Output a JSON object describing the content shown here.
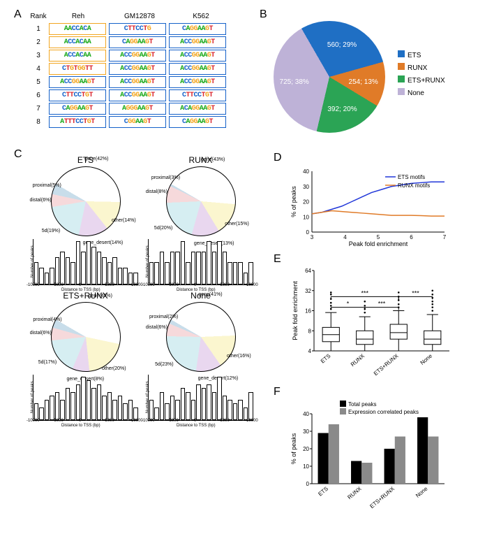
{
  "panelA": {
    "headers": [
      "Rank",
      "Reh",
      "GM12878",
      "K562"
    ],
    "ranks": [
      1,
      2,
      3,
      4,
      5,
      6,
      7,
      8
    ],
    "border_colors": {
      "runx": "#f2a51f",
      "ets": "#1461c9"
    },
    "motifs": [
      [
        {
          "seq": "AACCACA",
          "b": "runx"
        },
        {
          "seq": "CTTCCTG",
          "b": "ets"
        },
        {
          "seq": "CAGGAAGT",
          "b": "ets"
        }
      ],
      [
        {
          "seq": "ACCACAA",
          "b": "runx"
        },
        {
          "seq": "CAGGAAGT",
          "b": "ets"
        },
        {
          "seq": "ACCGGAAGT",
          "b": "ets"
        }
      ],
      [
        {
          "seq": "ACCACAA",
          "b": "runx"
        },
        {
          "seq": "ACCGGAAGT",
          "b": "ets"
        },
        {
          "seq": "ACCGGAAGT",
          "b": "ets"
        }
      ],
      [
        {
          "seq": "CTGTGGTT",
          "b": "runx"
        },
        {
          "seq": "ACCGGAAGT",
          "b": "ets"
        },
        {
          "seq": "ACCGGAAGT",
          "b": "ets"
        }
      ],
      [
        {
          "seq": "ACCGGAAGT",
          "b": "ets"
        },
        {
          "seq": "ACCGGAAGT",
          "b": "ets"
        },
        {
          "seq": "ACCGGAAGT",
          "b": "ets"
        }
      ],
      [
        {
          "seq": "CTTCCTGT",
          "b": "ets"
        },
        {
          "seq": "ACCGGAAGT",
          "b": "ets"
        },
        {
          "seq": "CTTCCTGT",
          "b": "ets"
        }
      ],
      [
        {
          "seq": "CAGGAAGT",
          "b": "ets"
        },
        {
          "seq": "AGGGAAGT",
          "b": "ets"
        },
        {
          "seq": "ACAGGAAGT",
          "b": "ets"
        }
      ],
      [
        {
          "seq": "ATTTCCTGT",
          "b": "ets"
        },
        {
          "seq": "CGGAAGT",
          "b": "ets"
        },
        {
          "seq": "CAGGAAGT",
          "b": "ets"
        }
      ]
    ]
  },
  "panelB": {
    "slices": [
      {
        "label": "ETS",
        "value": 560,
        "pct": 29,
        "color": "#1f6fc4"
      },
      {
        "label": "RUNX",
        "value": 254,
        "pct": 13,
        "color": "#e07b28"
      },
      {
        "label": "ETS+RUNX",
        "value": 392,
        "pct": 20,
        "color": "#2ba455"
      },
      {
        "label": "None",
        "value": 725,
        "pct": 38,
        "color": "#beb2d7"
      }
    ]
  },
  "panelC": {
    "region_colors": {
      "gene": "#ffffff",
      "other": "#fbf6cf",
      "gene_desert": "#e9d7ef",
      "5d": "#d6eef2",
      "distal": "#f6d9db",
      "proximal": "#c8ddea"
    },
    "groups": [
      {
        "title": "ETS",
        "regions": [
          {
            "k": "gene",
            "p": 42
          },
          {
            "k": "other",
            "p": 14
          },
          {
            "k": "gene_desert",
            "p": 14
          },
          {
            "k": "5d",
            "p": 19
          },
          {
            "k": "distal",
            "p": 6
          },
          {
            "k": "proximal",
            "p": 5
          }
        ],
        "hist": [
          4,
          3,
          2,
          3,
          5,
          6,
          5,
          4,
          8,
          6,
          8,
          7,
          6,
          5,
          4,
          5,
          3,
          3,
          2,
          2
        ]
      },
      {
        "title": "RUNX",
        "regions": [
          {
            "k": "gene",
            "p": 43
          },
          {
            "k": "other",
            "p": 15
          },
          {
            "k": "gene_desert",
            "p": 13
          },
          {
            "k": "5d",
            "p": 20
          },
          {
            "k": "distal",
            "p": 8
          },
          {
            "k": "proximal",
            "p": 3
          }
        ],
        "hist": [
          2,
          2,
          3,
          2,
          3,
          3,
          4,
          2,
          3,
          3,
          3,
          4,
          3,
          4,
          3,
          2,
          2,
          2,
          1,
          2
        ]
      },
      {
        "title": "ETS+RUNX",
        "regions": [
          {
            "k": "gene",
            "p": 45
          },
          {
            "k": "other",
            "p": 20
          },
          {
            "k": "gene_desert",
            "p": 8
          },
          {
            "k": "5d",
            "p": 17
          },
          {
            "k": "distal",
            "p": 6
          },
          {
            "k": "proximal",
            "p": 4
          }
        ],
        "hist": [
          4,
          3,
          5,
          6,
          7,
          5,
          8,
          7,
          9,
          11,
          10,
          8,
          9,
          6,
          7,
          5,
          6,
          4,
          5,
          3
        ]
      },
      {
        "title": "None",
        "regions": [
          {
            "k": "gene",
            "p": 41
          },
          {
            "k": "other",
            "p": 16
          },
          {
            "k": "gene_desert",
            "p": 12
          },
          {
            "k": "5d",
            "p": 23
          },
          {
            "k": "distal",
            "p": 6
          },
          {
            "k": "proximal",
            "p": 2
          }
        ],
        "hist": [
          5,
          3,
          7,
          4,
          6,
          5,
          8,
          7,
          5,
          9,
          8,
          9,
          7,
          11,
          6,
          5,
          4,
          5,
          3,
          7
        ]
      }
    ],
    "hist_xlabel": "Distance to TSS (bp)",
    "hist_ylabel": "Number of peaks",
    "hist_xticks": [
      -10000,
      -5000,
      0,
      5000,
      10000
    ]
  },
  "panelD": {
    "title_x": "Peak fold enrichment",
    "title_y": "% of peaks",
    "xlim": [
      3,
      7
    ],
    "ylim": [
      0,
      40
    ],
    "series": [
      {
        "name": "ETS motifs",
        "color": "#2137d9",
        "points": [
          [
            3,
            12
          ],
          [
            3.3,
            13
          ],
          [
            3.6,
            15
          ],
          [
            3.9,
            17
          ],
          [
            4.2,
            20
          ],
          [
            4.5,
            23
          ],
          [
            4.8,
            26
          ],
          [
            5.1,
            28
          ],
          [
            5.4,
            30
          ],
          [
            5.7,
            31
          ],
          [
            6.0,
            32
          ],
          [
            6.3,
            32.5
          ],
          [
            6.6,
            33
          ],
          [
            7,
            33
          ]
        ]
      },
      {
        "name": "RUNX motifs",
        "color": "#e07b28",
        "points": [
          [
            3,
            12
          ],
          [
            3.3,
            13
          ],
          [
            3.6,
            14
          ],
          [
            3.9,
            13.5
          ],
          [
            4.2,
            13
          ],
          [
            4.5,
            12.5
          ],
          [
            4.8,
            12
          ],
          [
            5.1,
            11.5
          ],
          [
            5.4,
            11
          ],
          [
            5.7,
            11
          ],
          [
            6.0,
            11
          ],
          [
            6.3,
            10.8
          ],
          [
            6.6,
            10.5
          ],
          [
            7,
            10.5
          ]
        ]
      }
    ]
  },
  "panelE": {
    "title_y": "Peak fold enrichment",
    "ylim": [
      4,
      64
    ],
    "yticks": [
      4,
      8,
      16,
      32,
      64
    ],
    "ylog": true,
    "categories": [
      "ETS",
      "RUNX",
      "ETS+RUNX",
      "None"
    ],
    "boxes": [
      {
        "min": 4,
        "q1": 5.5,
        "med": 7,
        "q3": 9,
        "max": 15,
        "outliers": [
          17,
          19,
          21,
          24,
          28,
          30
        ]
      },
      {
        "min": 4,
        "q1": 5,
        "med": 6,
        "q3": 8,
        "max": 13,
        "outliers": [
          15,
          17,
          19,
          22
        ]
      },
      {
        "min": 4,
        "q1": 6,
        "med": 7.5,
        "q3": 10,
        "max": 16,
        "outliers": [
          18,
          20,
          23,
          26,
          30
        ]
      },
      {
        "min": 4,
        "q1": 5,
        "med": 6,
        "q3": 8,
        "max": 14,
        "outliers": [
          16,
          18,
          20,
          22,
          25,
          28,
          32
        ]
      }
    ],
    "sig": [
      {
        "a": 0,
        "b": 1,
        "label": "*",
        "y": 18
      },
      {
        "a": 1,
        "b": 2,
        "label": "***",
        "y": 18
      },
      {
        "a": 0,
        "b": 2,
        "label": "***",
        "y": 26
      },
      {
        "a": 2,
        "b": 3,
        "label": "***",
        "y": 26
      }
    ]
  },
  "panelF": {
    "title_y": "% of peaks",
    "categories": [
      "ETS",
      "RUNX",
      "ETS+RUNX",
      "None"
    ],
    "ylim": [
      0,
      40
    ],
    "ytick_step": 10,
    "series": [
      {
        "name": "Total peaks",
        "color": "#000000",
        "values": [
          29,
          13,
          20,
          38
        ]
      },
      {
        "name": "Expression correlated peaks",
        "color": "#8a8a8a",
        "values": [
          34,
          12,
          27,
          27
        ]
      }
    ]
  },
  "labels": {
    "A": "A",
    "B": "B",
    "C": "C",
    "D": "D",
    "E": "E",
    "F": "F"
  }
}
